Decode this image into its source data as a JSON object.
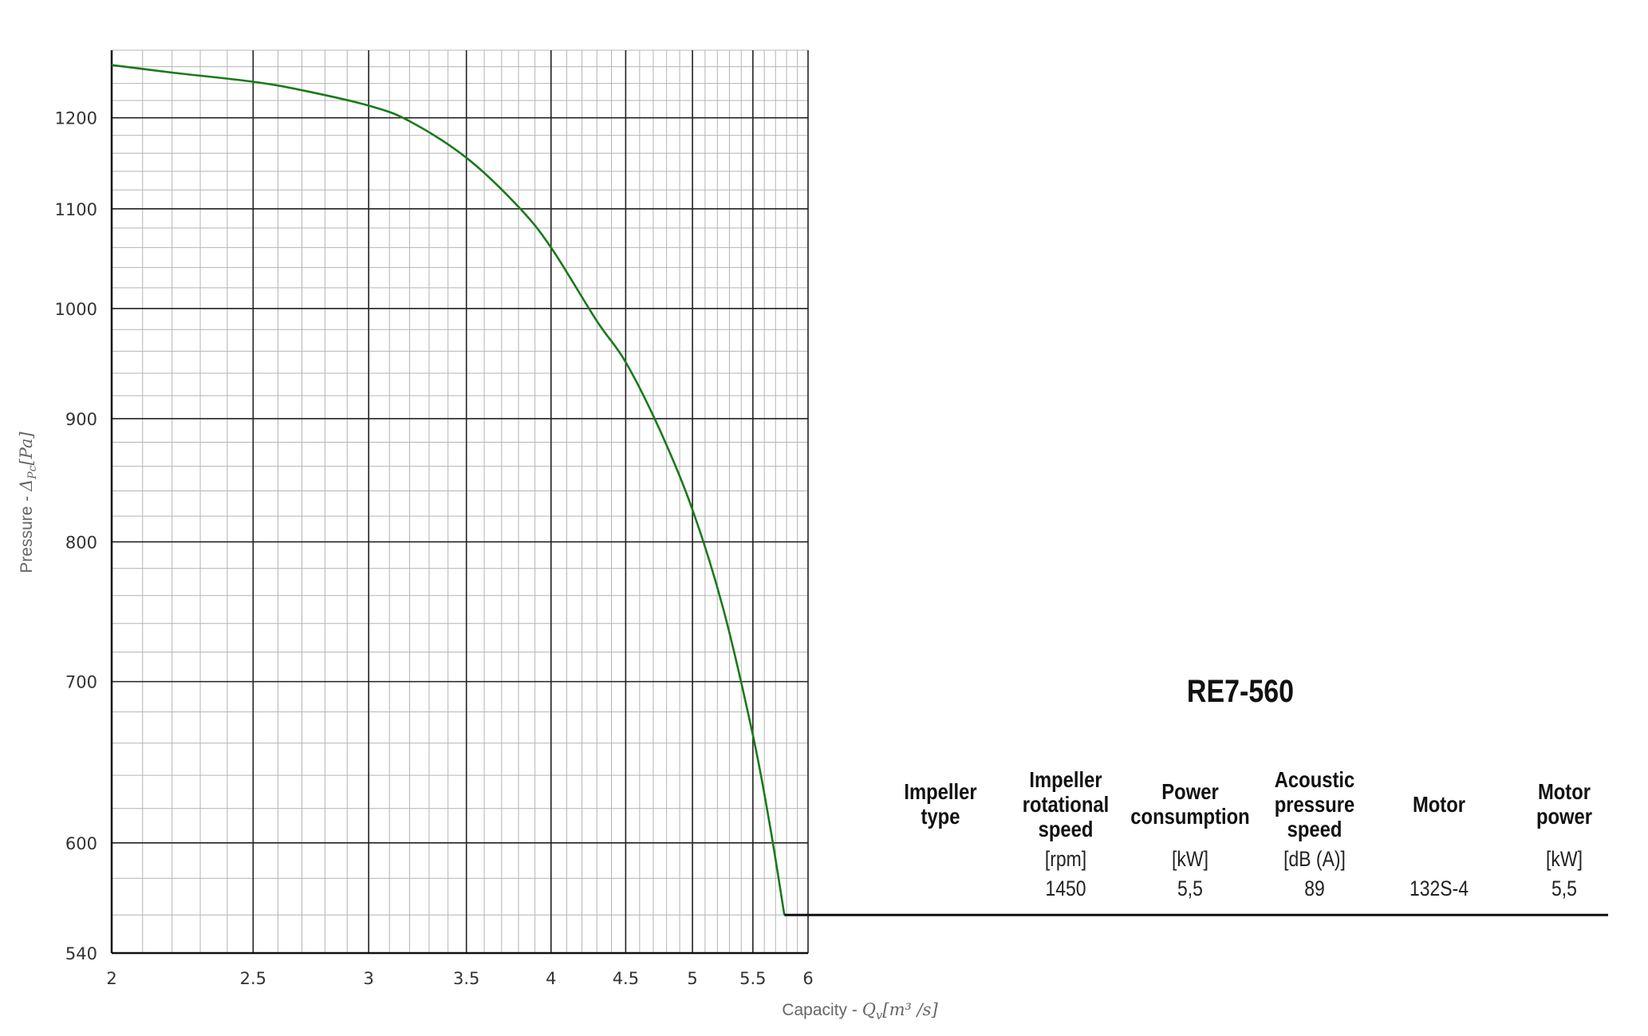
{
  "chart_data": {
    "type": "line",
    "xlabel_text": "Capacity - ",
    "xlabel_math": "Q",
    "xlabel_sub": "v",
    "xlabel_unit": "[m³ /s]",
    "ylabel_text": "Pressure - ",
    "ylabel_math": "Δ",
    "ylabel_sub": "Pc",
    "ylabel_unit": "[Pa]",
    "x_scale": "log",
    "y_scale": "log",
    "xlim": [
      2,
      6
    ],
    "ylim": [
      540,
      1280
    ],
    "x_ticks": [
      2,
      2.5,
      3,
      3.5,
      4,
      4.5,
      5,
      5.5,
      6
    ],
    "x_tick_labels": [
      "2",
      "2.5",
      "3",
      "3.5",
      "4",
      "4.5",
      "5",
      "5.5",
      "6"
    ],
    "y_ticks": [
      540,
      600,
      700,
      800,
      900,
      1000,
      1100,
      1200
    ],
    "y_tick_labels": [
      "540",
      "600",
      "700",
      "800",
      "900",
      "1000",
      "1100",
      "1200"
    ],
    "grid": true,
    "line_color": "#1a7a1a",
    "series": [
      {
        "x": [
          2.0,
          2.2,
          2.5,
          2.7,
          3.0,
          3.2,
          3.5,
          3.8,
          4.0,
          4.3,
          4.5,
          4.75,
          5.0,
          5.25,
          5.5,
          5.65,
          5.78
        ],
        "y": [
          1262,
          1253,
          1242,
          1232,
          1214,
          1196,
          1155,
          1102,
          1060,
          988,
          950,
          890,
          825,
          750,
          665,
          610,
          560
        ]
      }
    ],
    "terminal_line_y": 560,
    "terminal_line_x_from": 5.78
  },
  "spec": {
    "title": "RE7-560",
    "columns": [
      {
        "head": "Impeller\ntype",
        "unit": "",
        "value": ""
      },
      {
        "head": "Impeller\nrotational\nspeed",
        "unit": "[rpm]",
        "value": "1450"
      },
      {
        "head": "Power\nconsumption",
        "unit": "[kW]",
        "value": "5,5"
      },
      {
        "head": "Acoustic\npressure\nspeed",
        "unit": "[dB (A)]",
        "value": "89"
      },
      {
        "head": "Motor",
        "unit": "",
        "value": "132S-4"
      },
      {
        "head": "Motor\npower",
        "unit": "[kW]",
        "value": "5,5"
      }
    ]
  }
}
